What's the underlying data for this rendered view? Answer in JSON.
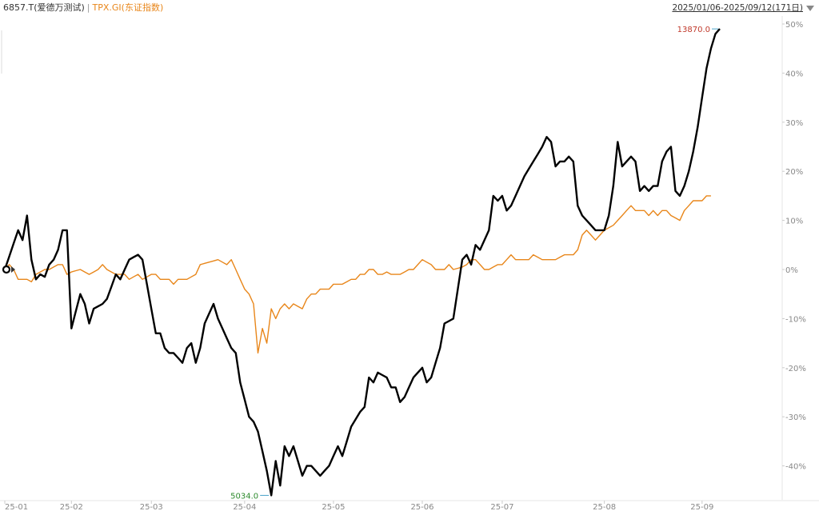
{
  "header": {
    "series1_label": "6857.T(爱德万测试)",
    "separator": "|",
    "series2_label": "TPX.GI(东证指数)",
    "date_range": "2025/01/06-2025/09/12(171日)"
  },
  "colors": {
    "series1": "#000000",
    "series2": "#e8861a",
    "max_label": "#c0392b",
    "min_label": "#2e8b2e",
    "axis_text": "#888888",
    "gridline": "#eeeeee"
  },
  "chart_data": {
    "type": "line",
    "y_unit": "%",
    "ylim": [
      -46,
      50
    ],
    "y_ticks": [
      "50%",
      "40%",
      "30%",
      "20%",
      "10%",
      "0%",
      "-10%",
      "-20%",
      "-30%",
      "-40%"
    ],
    "y_tick_values": [
      50,
      40,
      30,
      20,
      10,
      0,
      -10,
      -20,
      -30,
      -40
    ],
    "x_ticks": [
      "25-01",
      "25-02",
      "25-03",
      "25-04",
      "25-05",
      "25-06",
      "25-07",
      "25-08",
      "25-09"
    ],
    "x_tick_indices": [
      0,
      15,
      33,
      54,
      74,
      94,
      112,
      135,
      157
    ],
    "n_points": 171,
    "annotations": {
      "max_label": "13870.0",
      "min_label": "5034.0"
    },
    "series": [
      {
        "name": "6857.T(爱德万测试)",
        "color": "#000000",
        "keypoints": [
          [
            0,
            0
          ],
          [
            3,
            8
          ],
          [
            4,
            6
          ],
          [
            5,
            11
          ],
          [
            6,
            2
          ],
          [
            7,
            -2
          ],
          [
            8,
            -1
          ],
          [
            9,
            -1.5
          ],
          [
            10,
            1
          ],
          [
            11,
            2
          ],
          [
            12,
            4
          ],
          [
            13,
            8
          ],
          [
            14,
            8
          ],
          [
            15,
            -12
          ],
          [
            17,
            -5
          ],
          [
            18,
            -7
          ],
          [
            19,
            -11
          ],
          [
            20,
            -8
          ],
          [
            22,
            -7
          ],
          [
            23,
            -6
          ],
          [
            25,
            -1
          ],
          [
            26,
            -2
          ],
          [
            27,
            0
          ],
          [
            28,
            2
          ],
          [
            30,
            3
          ],
          [
            31,
            2
          ],
          [
            32,
            -3
          ],
          [
            34,
            -13
          ],
          [
            35,
            -13
          ],
          [
            36,
            -16
          ],
          [
            37,
            -17
          ],
          [
            38,
            -17
          ],
          [
            40,
            -19
          ],
          [
            41,
            -16
          ],
          [
            42,
            -15
          ],
          [
            43,
            -19
          ],
          [
            44,
            -16
          ],
          [
            45,
            -11
          ],
          [
            47,
            -7
          ],
          [
            48,
            -10
          ],
          [
            49,
            -12
          ],
          [
            51,
            -16
          ],
          [
            52,
            -17
          ],
          [
            53,
            -23
          ],
          [
            55,
            -30
          ],
          [
            56,
            -31
          ],
          [
            57,
            -33
          ],
          [
            58,
            -37
          ],
          [
            59,
            -41
          ],
          [
            60,
            -46
          ],
          [
            61,
            -39
          ],
          [
            62,
            -44
          ],
          [
            63,
            -36
          ],
          [
            64,
            -38
          ],
          [
            65,
            -36
          ],
          [
            66,
            -39
          ],
          [
            67,
            -42
          ],
          [
            68,
            -40
          ],
          [
            69,
            -40
          ],
          [
            71,
            -42
          ],
          [
            72,
            -41
          ],
          [
            73,
            -40
          ],
          [
            74,
            -38
          ],
          [
            75,
            -36
          ],
          [
            76,
            -38
          ],
          [
            77,
            -35
          ],
          [
            78,
            -32
          ],
          [
            80,
            -29
          ],
          [
            81,
            -28
          ],
          [
            82,
            -22
          ],
          [
            83,
            -23
          ],
          [
            84,
            -21
          ],
          [
            86,
            -22
          ],
          [
            87,
            -24
          ],
          [
            88,
            -24
          ],
          [
            89,
            -27
          ],
          [
            90,
            -26
          ],
          [
            91,
            -24
          ],
          [
            92,
            -22
          ],
          [
            93,
            -21
          ],
          [
            94,
            -20
          ],
          [
            95,
            -23
          ],
          [
            96,
            -22
          ],
          [
            97,
            -19
          ],
          [
            98,
            -16
          ],
          [
            99,
            -11
          ],
          [
            101,
            -10
          ],
          [
            102,
            -4
          ],
          [
            103,
            2
          ],
          [
            104,
            3
          ],
          [
            105,
            1
          ],
          [
            106,
            5
          ],
          [
            107,
            4
          ],
          [
            108,
            6
          ],
          [
            109,
            8
          ],
          [
            110,
            15
          ],
          [
            111,
            14
          ],
          [
            112,
            15
          ],
          [
            113,
            12
          ],
          [
            114,
            13
          ],
          [
            115,
            15
          ],
          [
            117,
            19
          ],
          [
            119,
            22
          ],
          [
            121,
            25
          ],
          [
            122,
            27
          ],
          [
            123,
            26
          ],
          [
            124,
            21
          ],
          [
            125,
            22
          ],
          [
            126,
            22
          ],
          [
            127,
            23
          ],
          [
            128,
            22
          ],
          [
            129,
            13
          ],
          [
            130,
            11
          ],
          [
            131,
            10
          ],
          [
            133,
            8
          ],
          [
            134,
            8
          ],
          [
            135,
            8
          ],
          [
            136,
            11
          ],
          [
            137,
            17
          ],
          [
            138,
            26
          ],
          [
            139,
            21
          ],
          [
            140,
            22
          ],
          [
            141,
            23
          ],
          [
            142,
            22
          ],
          [
            143,
            16
          ],
          [
            144,
            17
          ],
          [
            145,
            16
          ],
          [
            146,
            17
          ],
          [
            147,
            17
          ],
          [
            148,
            22
          ],
          [
            149,
            24
          ],
          [
            150,
            25
          ],
          [
            151,
            16
          ],
          [
            152,
            15
          ],
          [
            153,
            17
          ],
          [
            154,
            20
          ],
          [
            155,
            24
          ],
          [
            156,
            29
          ],
          [
            157,
            35
          ],
          [
            158,
            41
          ],
          [
            159,
            45
          ],
          [
            160,
            48
          ],
          [
            161,
            49
          ]
        ]
      },
      {
        "name": "TPX.GI(东证指数)",
        "color": "#e8861a",
        "keypoints": [
          [
            0,
            0
          ],
          [
            1,
            1
          ],
          [
            2,
            0
          ],
          [
            3,
            -2
          ],
          [
            5,
            -2
          ],
          [
            6,
            -2.5
          ],
          [
            7,
            -1
          ],
          [
            9,
            0
          ],
          [
            10,
            0
          ],
          [
            12,
            1
          ],
          [
            13,
            1
          ],
          [
            14,
            -1
          ],
          [
            15,
            -0.5
          ],
          [
            17,
            0
          ],
          [
            18,
            -0.5
          ],
          [
            19,
            -1
          ],
          [
            21,
            0
          ],
          [
            22,
            1
          ],
          [
            23,
            0
          ],
          [
            25,
            -1
          ],
          [
            27,
            -1
          ],
          [
            28,
            -2
          ],
          [
            30,
            -1
          ],
          [
            31,
            -2
          ],
          [
            33,
            -1
          ],
          [
            34,
            -1
          ],
          [
            35,
            -2
          ],
          [
            37,
            -2
          ],
          [
            38,
            -3
          ],
          [
            39,
            -2
          ],
          [
            41,
            -2
          ],
          [
            43,
            -1
          ],
          [
            44,
            1
          ],
          [
            46,
            1.5
          ],
          [
            48,
            2
          ],
          [
            50,
            1
          ],
          [
            51,
            2
          ],
          [
            53,
            -2
          ],
          [
            54,
            -4
          ],
          [
            55,
            -5
          ],
          [
            56,
            -7
          ],
          [
            57,
            -17
          ],
          [
            58,
            -12
          ],
          [
            59,
            -15
          ],
          [
            60,
            -8
          ],
          [
            61,
            -10
          ],
          [
            62,
            -8
          ],
          [
            63,
            -7
          ],
          [
            64,
            -8
          ],
          [
            65,
            -7
          ],
          [
            67,
            -8
          ],
          [
            68,
            -6
          ],
          [
            69,
            -5
          ],
          [
            70,
            -5
          ],
          [
            71,
            -4
          ],
          [
            73,
            -4
          ],
          [
            74,
            -3
          ],
          [
            76,
            -3
          ],
          [
            78,
            -2
          ],
          [
            79,
            -2
          ],
          [
            80,
            -1
          ],
          [
            81,
            -1
          ],
          [
            82,
            0
          ],
          [
            83,
            0
          ],
          [
            84,
            -1
          ],
          [
            85,
            -1
          ],
          [
            86,
            -0.5
          ],
          [
            87,
            -1
          ],
          [
            88,
            -1
          ],
          [
            89,
            -1
          ],
          [
            91,
            0
          ],
          [
            92,
            0
          ],
          [
            93,
            1
          ],
          [
            94,
            2
          ],
          [
            95,
            1.5
          ],
          [
            96,
            1
          ],
          [
            97,
            0
          ],
          [
            99,
            0
          ],
          [
            100,
            1
          ],
          [
            101,
            0
          ],
          [
            103,
            0.5
          ],
          [
            104,
            1
          ],
          [
            105,
            2
          ],
          [
            106,
            2
          ],
          [
            107,
            1
          ],
          [
            108,
            0
          ],
          [
            109,
            0
          ],
          [
            111,
            1
          ],
          [
            112,
            1
          ],
          [
            113,
            2
          ],
          [
            114,
            3
          ],
          [
            115,
            2
          ],
          [
            116,
            2
          ],
          [
            118,
            2
          ],
          [
            119,
            3
          ],
          [
            121,
            2
          ],
          [
            122,
            2
          ],
          [
            124,
            2
          ],
          [
            126,
            3
          ],
          [
            128,
            3
          ],
          [
            129,
            4
          ],
          [
            130,
            7
          ],
          [
            131,
            8
          ],
          [
            132,
            7
          ],
          [
            133,
            6
          ],
          [
            134,
            7
          ],
          [
            135,
            8
          ],
          [
            137,
            9
          ],
          [
            138,
            10
          ],
          [
            139,
            11
          ],
          [
            140,
            12
          ],
          [
            141,
            13
          ],
          [
            142,
            12
          ],
          [
            143,
            12
          ],
          [
            144,
            12
          ],
          [
            145,
            11
          ],
          [
            146,
            12
          ],
          [
            147,
            11
          ],
          [
            148,
            12
          ],
          [
            149,
            12
          ],
          [
            150,
            11
          ],
          [
            152,
            10
          ],
          [
            153,
            12
          ],
          [
            154,
            13
          ],
          [
            155,
            14
          ],
          [
            156,
            14
          ],
          [
            157,
            14
          ],
          [
            158,
            15
          ],
          [
            159,
            15
          ]
        ]
      }
    ]
  }
}
